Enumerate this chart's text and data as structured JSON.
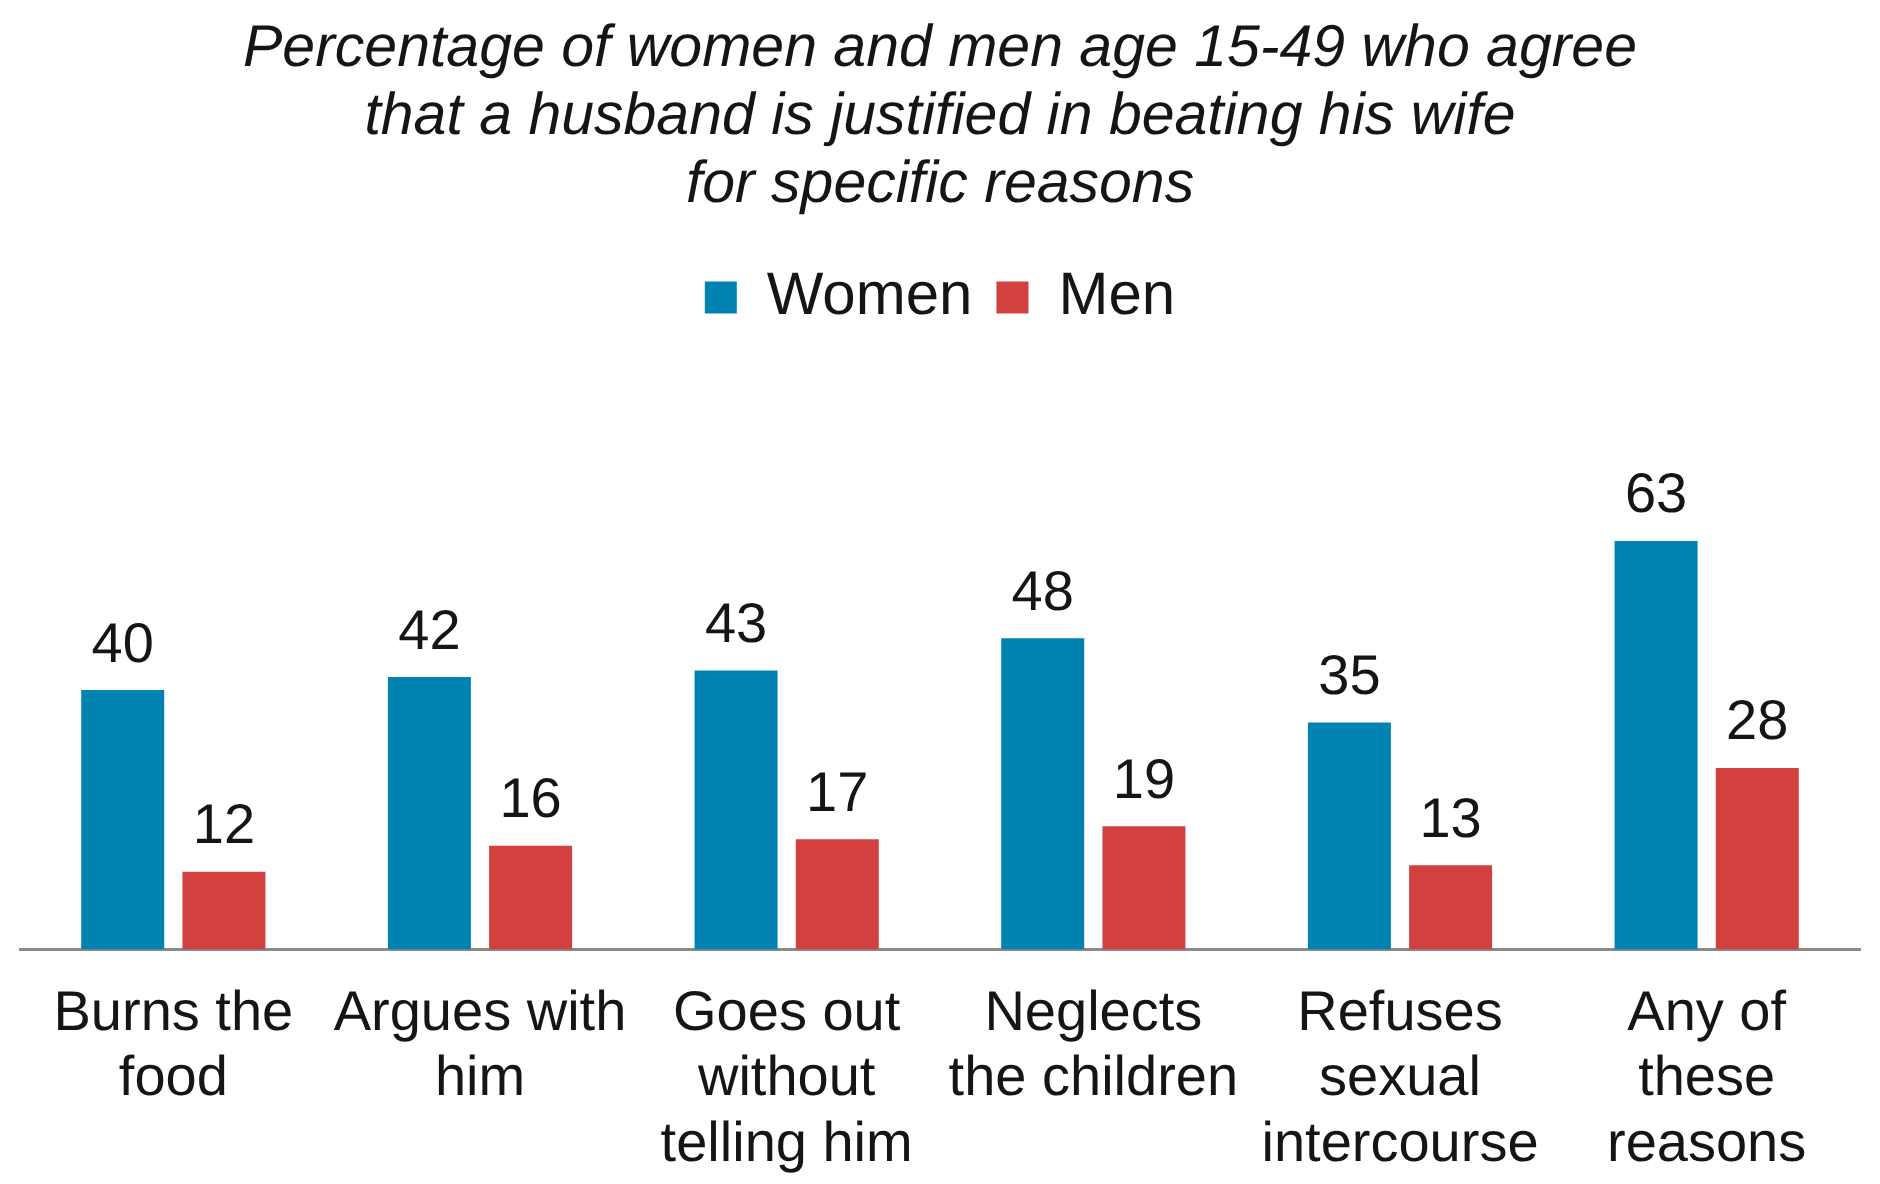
{
  "chart_data": {
    "type": "bar",
    "title": "Percentage of women and men age 15-49 who agree\nthat a husband is justified in beating his wife\nfor specific reasons",
    "categories": [
      "Burns the food",
      "Argues with him",
      "Goes out without telling him",
      "Neglects the children",
      "Refuses sexual intercourse",
      "Any of these reasons"
    ],
    "series": [
      {
        "name": "Women",
        "color": "#0083b0",
        "values": [
          40,
          42,
          43,
          48,
          35,
          63
        ]
      },
      {
        "name": "Men",
        "color": "#d24040",
        "values": [
          12,
          16,
          17,
          19,
          13,
          28
        ]
      }
    ],
    "legend": "top",
    "data_labels": true,
    "tick_labels": "x"
  }
}
